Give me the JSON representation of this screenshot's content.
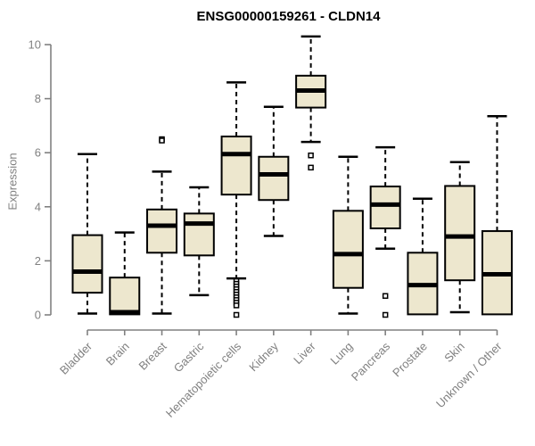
{
  "chart_data": {
    "type": "box",
    "title": "ENSG00000159261 - CLDN14",
    "ylabel": "Expression",
    "xlabel": "",
    "ylim": [
      0,
      10
    ],
    "yticks": [
      0,
      2,
      4,
      6,
      8,
      10
    ],
    "grid": false,
    "legend": "none",
    "categories": [
      "Bladder",
      "Brain",
      "Breast",
      "Gastric",
      "Hematopoietic cells",
      "Kidney",
      "Liver",
      "Lung",
      "Pancreas",
      "Prostate",
      "Skin",
      "Unknown / Other"
    ],
    "series": [
      {
        "name": "Bladder",
        "low": 0.05,
        "q1": 0.82,
        "median": 1.6,
        "q3": 2.95,
        "high": 5.95,
        "outliers": []
      },
      {
        "name": "Brain",
        "low": 0.02,
        "q1": 0.02,
        "median": 0.1,
        "q3": 1.38,
        "high": 3.05,
        "outliers": []
      },
      {
        "name": "Breast",
        "low": 0.05,
        "q1": 2.3,
        "median": 3.3,
        "q3": 3.9,
        "high": 5.3,
        "outliers": [
          6.5,
          6.45
        ]
      },
      {
        "name": "Gastric",
        "low": 0.73,
        "q1": 2.2,
        "median": 3.38,
        "q3": 3.75,
        "high": 4.72,
        "outliers": []
      },
      {
        "name": "Hematopoietic cells",
        "low": 1.35,
        "q1": 4.45,
        "median": 5.95,
        "q3": 6.6,
        "high": 8.6,
        "outliers": [
          1.25,
          1.15,
          1.05,
          0.95,
          0.85,
          0.75,
          0.65,
          0.55,
          0.45,
          0.35,
          0.0
        ]
      },
      {
        "name": "Kidney",
        "low": 2.92,
        "q1": 4.25,
        "median": 5.2,
        "q3": 5.85,
        "high": 7.7,
        "outliers": []
      },
      {
        "name": "Liver",
        "low": 6.4,
        "q1": 7.67,
        "median": 8.3,
        "q3": 8.85,
        "high": 10.3,
        "outliers": [
          5.9,
          5.45
        ]
      },
      {
        "name": "Lung",
        "low": 0.05,
        "q1": 1.0,
        "median": 2.25,
        "q3": 3.85,
        "high": 5.85,
        "outliers": []
      },
      {
        "name": "Pancreas",
        "low": 2.45,
        "q1": 3.2,
        "median": 4.08,
        "q3": 4.75,
        "high": 6.2,
        "outliers": [
          0.7,
          0.0
        ]
      },
      {
        "name": "Prostate",
        "low": 0.02,
        "q1": 0.02,
        "median": 1.1,
        "q3": 2.3,
        "high": 4.3,
        "outliers": []
      },
      {
        "name": "Skin",
        "low": 0.1,
        "q1": 1.28,
        "median": 2.9,
        "q3": 4.77,
        "high": 5.65,
        "outliers": []
      },
      {
        "name": "Unknown / Other",
        "low": 0.02,
        "q1": 0.02,
        "median": 1.5,
        "q3": 3.1,
        "high": 7.35,
        "outliers": []
      }
    ],
    "colors": {
      "box_fill": "#EDE7CE",
      "box_stroke": "#000000",
      "median": "#000000",
      "whisker": "#000000",
      "outlier_fill": "#FFFFFF",
      "outlier_stroke": "#000000",
      "axis": "#808080",
      "tick_label": "#808080",
      "title": "#000000",
      "background": "#FFFFFF"
    }
  }
}
